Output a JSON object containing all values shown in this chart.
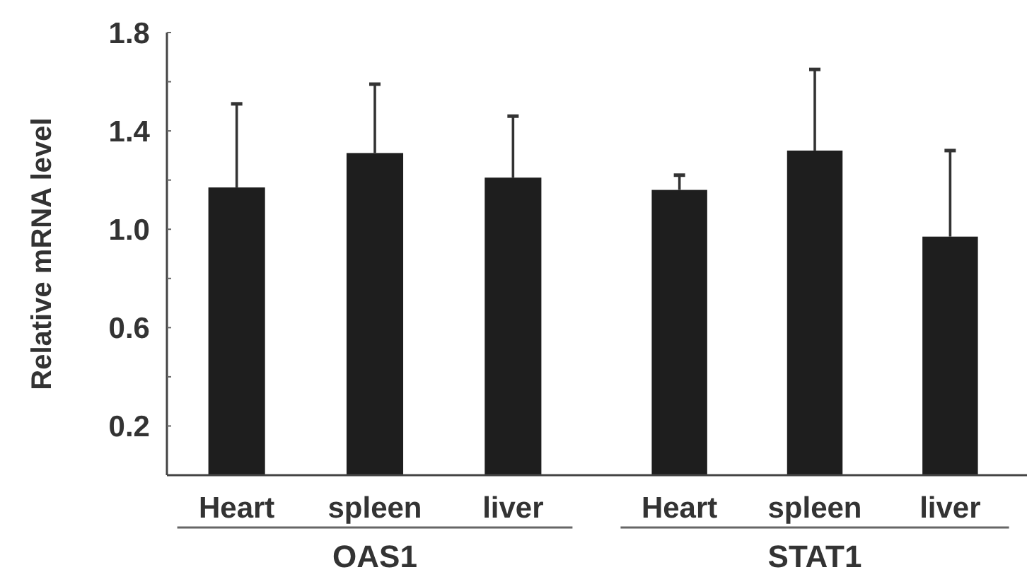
{
  "chart_data": [
    {
      "type": "bar",
      "xlabel": "OAS1",
      "ylabel": "Relative mRNA level",
      "categories": [
        "Heart",
        "spleen",
        "liver"
      ],
      "values": [
        1.17,
        1.31,
        1.21
      ],
      "errors": [
        [
          1.17,
          1.51
        ],
        [
          1.31,
          1.59
        ],
        [
          1.21,
          1.46
        ]
      ],
      "color": "#1e1e1e",
      "ylim": [
        0,
        1.8
      ],
      "yticks": [
        {
          "value": 0.2,
          "label": "0.2"
        },
        {
          "value": 0.4,
          "label": null
        },
        {
          "value": 0.6,
          "label": "0.6"
        },
        {
          "value": 0.8,
          "label": null
        },
        {
          "value": 1.0,
          "label": "1.0"
        },
        {
          "value": 1.2,
          "label": null
        },
        {
          "value": 1.4,
          "label": "1.4"
        },
        {
          "value": 1.6,
          "label": null
        },
        {
          "value": 1.8,
          "label": "1.8"
        }
      ]
    },
    {
      "type": "bar",
      "xlabel": "STAT1",
      "categories": [
        "Heart",
        "spleen",
        "liver"
      ],
      "values": [
        1.16,
        1.32,
        0.97
      ],
      "errors": [
        [
          1.16,
          1.22
        ],
        [
          1.32,
          1.65
        ],
        [
          0.97,
          1.32
        ]
      ],
      "color": "#1e1e1e",
      "ylim": [
        0,
        1.8
      ],
      "tick_labels": "x"
    }
  ]
}
